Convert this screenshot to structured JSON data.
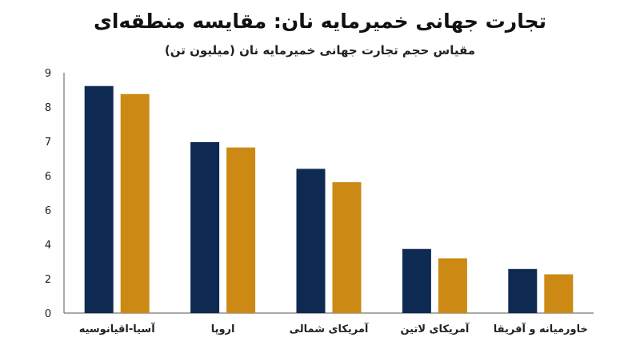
{
  "title": "تجارت جهانی خمیرمایه نان: مقایسه منطقه‌ای",
  "subtitle": "مقیاس حجم تجارت جهانی خمیرمایه نان (میلیون تن)",
  "chart_data": {
    "type": "bar",
    "title": "تجارت جهانی خمیرمایه نان: مقایسه منطقه‌ای",
    "subtitle": "مقیاس حجم تجارت جهانی خمیرمایه نان (میلیون تن)",
    "categories": [
      "آسیا-اقیانوسیه",
      "اروپا",
      "آمریکای شمالی",
      "آمریکای لاتین",
      "خاورمیانه و آفریقا"
    ],
    "series": [
      {
        "values": [
          8.5,
          6.4,
          5.4,
          2.4,
          1.65
        ],
        "color": "#0f2a52"
      },
      {
        "values": [
          8.2,
          6.2,
          4.9,
          2.05,
          1.45
        ],
        "color": "#cc8a14"
      }
    ],
    "y_ticks": [
      "0",
      "2",
      "4",
      "6",
      "6",
      "7",
      "8",
      "9"
    ],
    "ylim": [
      0,
      9
    ],
    "grid": false,
    "xlabel": "",
    "ylabel": ""
  }
}
